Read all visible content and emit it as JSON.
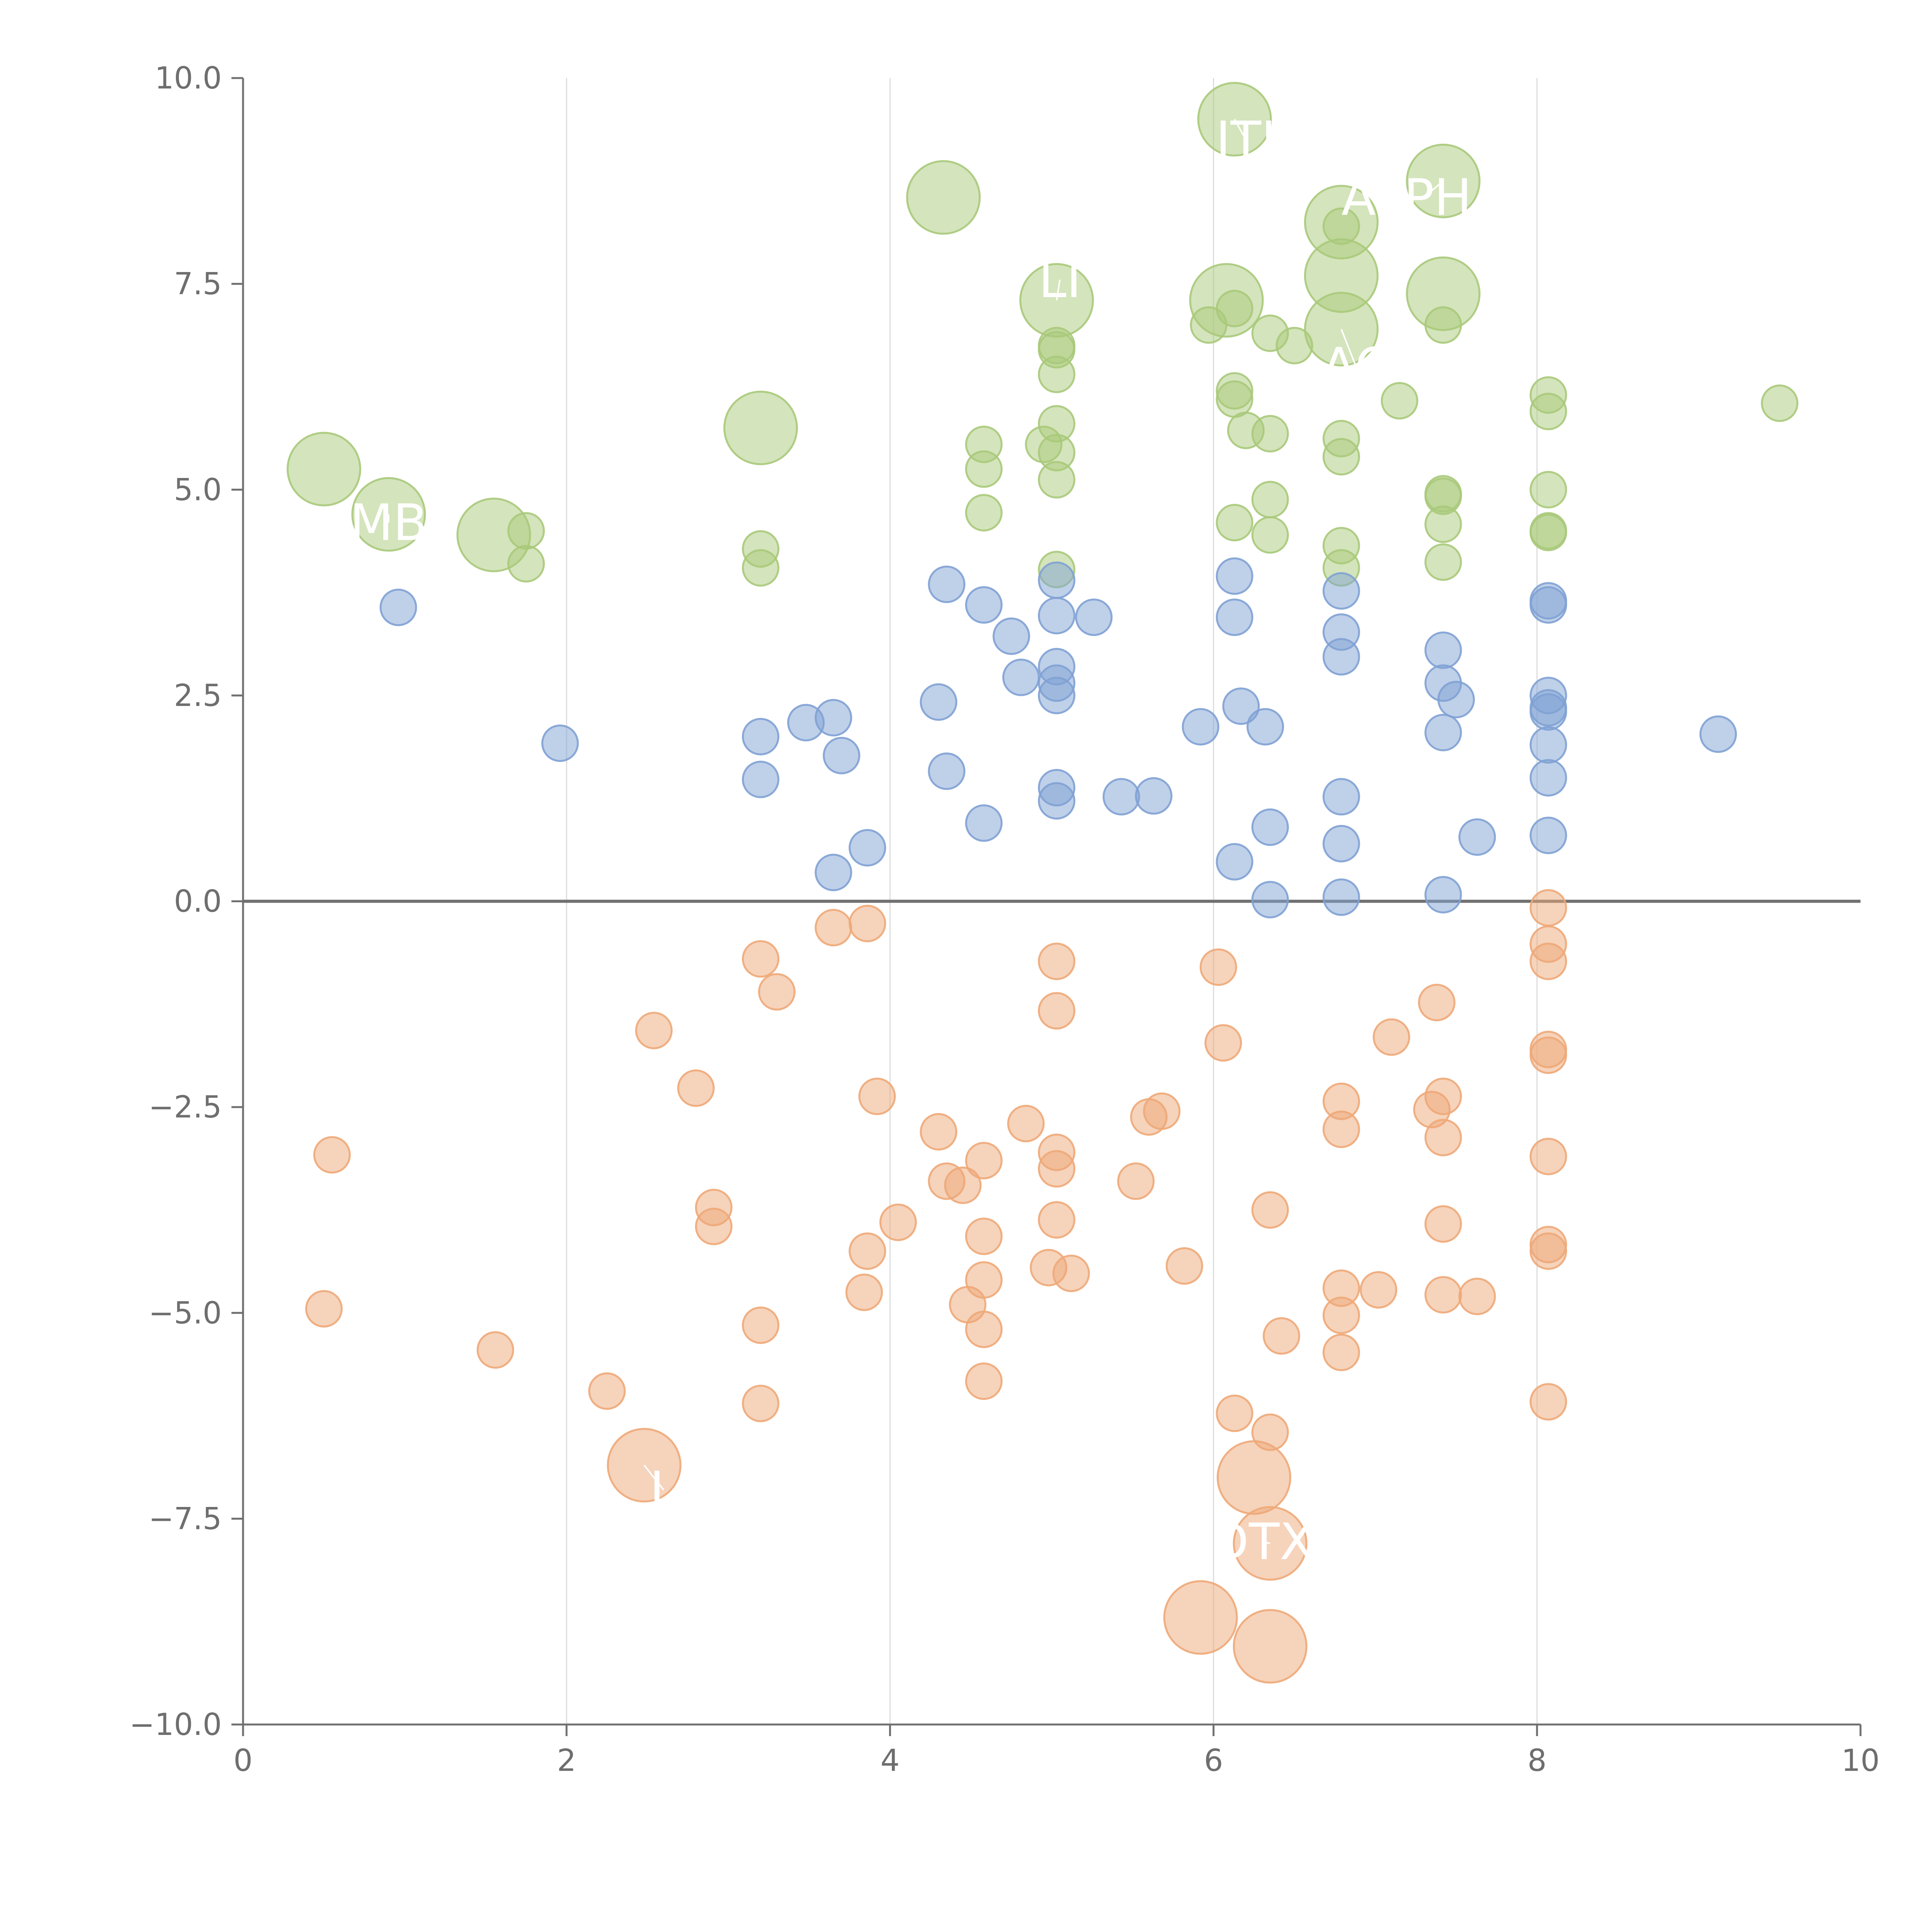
{
  "chart_data": {
    "type": "scatter",
    "title": "",
    "xlabel": "",
    "ylabel": "",
    "xlim": [
      0,
      10
    ],
    "ylim": [
      -10,
      10
    ],
    "x_ticks": [
      0,
      2,
      4,
      6,
      8,
      10
    ],
    "y_ticks": [
      -10.0,
      -7.5,
      -5.0,
      -2.5,
      0.0,
      2.5,
      5.0,
      7.5,
      10.0
    ],
    "x_tick_labels": [
      "0",
      "2",
      "4",
      "6",
      "8",
      "10"
    ],
    "y_tick_labels": [
      "−10.0",
      "−7.5",
      "−5.0",
      "−2.5",
      "0.0",
      "2.5",
      "5.0",
      "7.5",
      "10.0"
    ],
    "vertical_gridlines_at": [
      2,
      4,
      6,
      8
    ],
    "reference_line_y": 0,
    "series": [
      {
        "name": "positive-high",
        "color": "#a9c97a",
        "points": [
          [
            6.13,
            9.5,
            2
          ],
          [
            7.42,
            8.75,
            2
          ],
          [
            4.33,
            8.55,
            2
          ],
          [
            6.79,
            8.25,
            2
          ],
          [
            6.79,
            7.6,
            2
          ],
          [
            5.03,
            7.3,
            2
          ],
          [
            6.08,
            7.3,
            2
          ],
          [
            7.42,
            7.38,
            2
          ],
          [
            6.79,
            6.95,
            2
          ],
          [
            3.2,
            5.75,
            2
          ],
          [
            0.5,
            5.25,
            2
          ],
          [
            0.9,
            4.7,
            2
          ],
          [
            1.55,
            4.45,
            2
          ],
          [
            6.79,
            8.2,
            1
          ],
          [
            6.13,
            7.2,
            1
          ],
          [
            5.97,
            7.0,
            1
          ],
          [
            7.42,
            7.0,
            1
          ],
          [
            6.35,
            6.9,
            1
          ],
          [
            6.5,
            6.75,
            1
          ],
          [
            5.03,
            6.75,
            1
          ],
          [
            5.03,
            6.7,
            1
          ],
          [
            5.03,
            6.4,
            1
          ],
          [
            6.13,
            6.2,
            1
          ],
          [
            6.13,
            6.1,
            1
          ],
          [
            7.15,
            6.08,
            1
          ],
          [
            8.07,
            6.15,
            1
          ],
          [
            8.07,
            5.95,
            1
          ],
          [
            9.5,
            6.05,
            1
          ],
          [
            6.2,
            5.72,
            1
          ],
          [
            6.35,
            5.68,
            1
          ],
          [
            4.58,
            5.55,
            1
          ],
          [
            4.95,
            5.55,
            1
          ],
          [
            5.03,
            5.8,
            1
          ],
          [
            5.03,
            5.45,
            1
          ],
          [
            6.79,
            5.62,
            1
          ],
          [
            6.79,
            5.4,
            1
          ],
          [
            4.58,
            5.25,
            1
          ],
          [
            5.03,
            5.12,
            1
          ],
          [
            7.42,
            4.95,
            1
          ],
          [
            7.42,
            4.92,
            1
          ],
          [
            8.07,
            5.0,
            1
          ],
          [
            6.35,
            4.88,
            1
          ],
          [
            4.58,
            4.72,
            1
          ],
          [
            6.13,
            4.6,
            1
          ],
          [
            7.42,
            4.58,
            1
          ],
          [
            8.07,
            4.5,
            1
          ],
          [
            8.07,
            4.48,
            1
          ],
          [
            1.75,
            4.5,
            1
          ],
          [
            6.35,
            4.45,
            1
          ],
          [
            6.79,
            4.32,
            1
          ],
          [
            3.2,
            4.28,
            1
          ],
          [
            1.75,
            4.1,
            1
          ],
          [
            3.2,
            4.05,
            1
          ],
          [
            5.03,
            4.03,
            1
          ],
          [
            6.79,
            4.05,
            1
          ],
          [
            7.42,
            4.12,
            1
          ]
        ]
      },
      {
        "name": "positive-low",
        "color": "#7fa1d4",
        "points": [
          [
            0.96,
            3.57,
            1
          ],
          [
            1.96,
            1.92,
            1
          ],
          [
            3.2,
            2.0,
            1
          ],
          [
            3.2,
            1.48,
            1
          ],
          [
            3.48,
            2.17,
            1
          ],
          [
            3.65,
            2.23,
            1
          ],
          [
            3.7,
            1.77,
            1
          ],
          [
            3.65,
            0.35,
            1
          ],
          [
            3.86,
            0.65,
            1
          ],
          [
            4.35,
            3.85,
            1
          ],
          [
            4.58,
            3.6,
            1
          ],
          [
            4.75,
            3.22,
            1
          ],
          [
            4.81,
            2.72,
            1
          ],
          [
            4.3,
            2.42,
            1
          ],
          [
            4.35,
            1.58,
            1
          ],
          [
            4.58,
            0.95,
            1
          ],
          [
            5.03,
            3.9,
            1
          ],
          [
            5.03,
            3.47,
            1
          ],
          [
            5.03,
            2.85,
            1
          ],
          [
            5.03,
            2.65,
            1
          ],
          [
            5.03,
            2.5,
            1
          ],
          [
            5.26,
            3.45,
            1
          ],
          [
            5.03,
            1.38,
            1
          ],
          [
            5.03,
            1.22,
            1
          ],
          [
            5.43,
            1.27,
            1
          ],
          [
            5.63,
            1.28,
            1
          ],
          [
            5.92,
            2.12,
            1
          ],
          [
            6.13,
            3.95,
            1
          ],
          [
            6.13,
            3.45,
            1
          ],
          [
            6.17,
            2.37,
            1
          ],
          [
            6.32,
            2.12,
            1
          ],
          [
            6.35,
            0.9,
            1
          ],
          [
            6.13,
            0.48,
            1
          ],
          [
            6.35,
            0.02,
            1
          ],
          [
            6.79,
            3.77,
            1
          ],
          [
            6.79,
            3.27,
            1
          ],
          [
            6.79,
            2.97,
            1
          ],
          [
            6.79,
            1.27,
            1
          ],
          [
            6.79,
            0.7,
            1
          ],
          [
            6.79,
            0.05,
            1
          ],
          [
            7.42,
            3.05,
            1
          ],
          [
            7.42,
            2.65,
            1
          ],
          [
            7.5,
            2.45,
            1
          ],
          [
            7.42,
            2.05,
            1
          ],
          [
            7.42,
            0.08,
            1
          ],
          [
            7.63,
            0.78,
            1
          ],
          [
            8.07,
            3.65,
            1
          ],
          [
            8.07,
            3.6,
            1
          ],
          [
            8.07,
            2.5,
            1
          ],
          [
            8.07,
            2.35,
            1
          ],
          [
            8.07,
            2.3,
            1
          ],
          [
            8.07,
            1.9,
            1
          ],
          [
            8.07,
            1.5,
            1
          ],
          [
            8.07,
            0.8,
            1
          ],
          [
            9.12,
            2.03,
            1
          ]
        ]
      },
      {
        "name": "negative",
        "color": "#eea878",
        "points": [
          [
            2.48,
            -6.85,
            2
          ],
          [
            6.25,
            -7.0,
            2
          ],
          [
            6.35,
            -7.8,
            2
          ],
          [
            5.92,
            -8.7,
            2
          ],
          [
            6.35,
            -9.05,
            2
          ],
          [
            0.55,
            -3.08,
            1
          ],
          [
            0.5,
            -4.95,
            1
          ],
          [
            1.56,
            -5.45,
            1
          ],
          [
            2.25,
            -5.95,
            1
          ],
          [
            2.54,
            -1.57,
            1
          ],
          [
            2.8,
            -2.27,
            1
          ],
          [
            2.91,
            -3.72,
            1
          ],
          [
            2.91,
            -3.95,
            1
          ],
          [
            3.2,
            -0.7,
            1
          ],
          [
            3.3,
            -1.1,
            1
          ],
          [
            3.2,
            -5.15,
            1
          ],
          [
            3.2,
            -6.1,
            1
          ],
          [
            3.65,
            -0.32,
            1
          ],
          [
            3.86,
            -0.27,
            1
          ],
          [
            3.92,
            -2.37,
            1
          ],
          [
            3.86,
            -4.25,
            1
          ],
          [
            3.84,
            -4.75,
            1
          ],
          [
            4.05,
            -3.9,
            1
          ],
          [
            4.3,
            -2.8,
            1
          ],
          [
            4.35,
            -3.4,
            1
          ],
          [
            4.45,
            -3.45,
            1
          ],
          [
            4.48,
            -4.9,
            1
          ],
          [
            4.58,
            -3.15,
            1
          ],
          [
            4.58,
            -4.07,
            1
          ],
          [
            4.58,
            -4.6,
            1
          ],
          [
            4.58,
            -5.2,
            1
          ],
          [
            4.58,
            -5.83,
            1
          ],
          [
            4.84,
            -2.7,
            1
          ],
          [
            5.03,
            -0.73,
            1
          ],
          [
            5.03,
            -1.33,
            1
          ],
          [
            5.03,
            -3.05,
            1
          ],
          [
            5.03,
            -3.25,
            1
          ],
          [
            5.03,
            -3.87,
            1
          ],
          [
            4.98,
            -4.45,
            1
          ],
          [
            5.12,
            -4.52,
            1
          ],
          [
            5.52,
            -3.4,
            1
          ],
          [
            5.6,
            -2.62,
            1
          ],
          [
            5.68,
            -2.55,
            1
          ],
          [
            5.82,
            -4.43,
            1
          ],
          [
            6.03,
            -0.8,
            1
          ],
          [
            6.06,
            -1.72,
            1
          ],
          [
            6.13,
            -6.22,
            1
          ],
          [
            6.35,
            -3.75,
            1
          ],
          [
            6.42,
            -5.28,
            1
          ],
          [
            6.35,
            -6.45,
            1
          ],
          [
            6.79,
            -2.43,
            1
          ],
          [
            6.79,
            -2.77,
            1
          ],
          [
            6.79,
            -4.7,
            1
          ],
          [
            6.79,
            -5.03,
            1
          ],
          [
            6.79,
            -5.48,
            1
          ],
          [
            7.02,
            -4.72,
            1
          ],
          [
            7.1,
            -1.65,
            1
          ],
          [
            7.35,
            -2.53,
            1
          ],
          [
            7.38,
            -1.23,
            1
          ],
          [
            7.42,
            -2.37,
            1
          ],
          [
            7.42,
            -2.87,
            1
          ],
          [
            7.42,
            -3.92,
            1
          ],
          [
            7.42,
            -4.78,
            1
          ],
          [
            7.63,
            -4.8,
            1
          ],
          [
            8.07,
            -0.08,
            1
          ],
          [
            8.07,
            -0.52,
            1
          ],
          [
            8.07,
            -0.73,
            1
          ],
          [
            8.07,
            -1.8,
            1
          ],
          [
            8.07,
            -1.87,
            1
          ],
          [
            8.07,
            -3.1,
            1
          ],
          [
            8.07,
            -4.17,
            1
          ],
          [
            8.07,
            -4.25,
            1
          ],
          [
            8.07,
            -6.08,
            1
          ]
        ]
      }
    ],
    "annotations": [
      {
        "text": "ITI",
        "x": 6.13,
        "y": 9.5,
        "cx": 6.2,
        "cy": 9.25
      },
      {
        "text": "ALPHA",
        "x": 7.42,
        "y": 8.75,
        "cx": 7.3,
        "cy": 8.55
      },
      {
        "text": "LI",
        "x": 5.03,
        "y": 7.3,
        "cx": 5.05,
        "cy": 7.55
      },
      {
        "text": "AC",
        "x": 6.79,
        "y": 6.95,
        "cx": 6.88,
        "cy": 6.5
      },
      {
        "text": "MB",
        "x": 0.9,
        "y": 4.7,
        "cx": 0.9,
        "cy": 4.6
      },
      {
        "text": "L",
        "x": 2.48,
        "y": -6.85,
        "cx": 2.6,
        "cy": -7.15
      },
      {
        "text": "DTX",
        "x": 6.35,
        "y": -7.8,
        "cx": 6.3,
        "cy": -7.78
      }
    ]
  }
}
